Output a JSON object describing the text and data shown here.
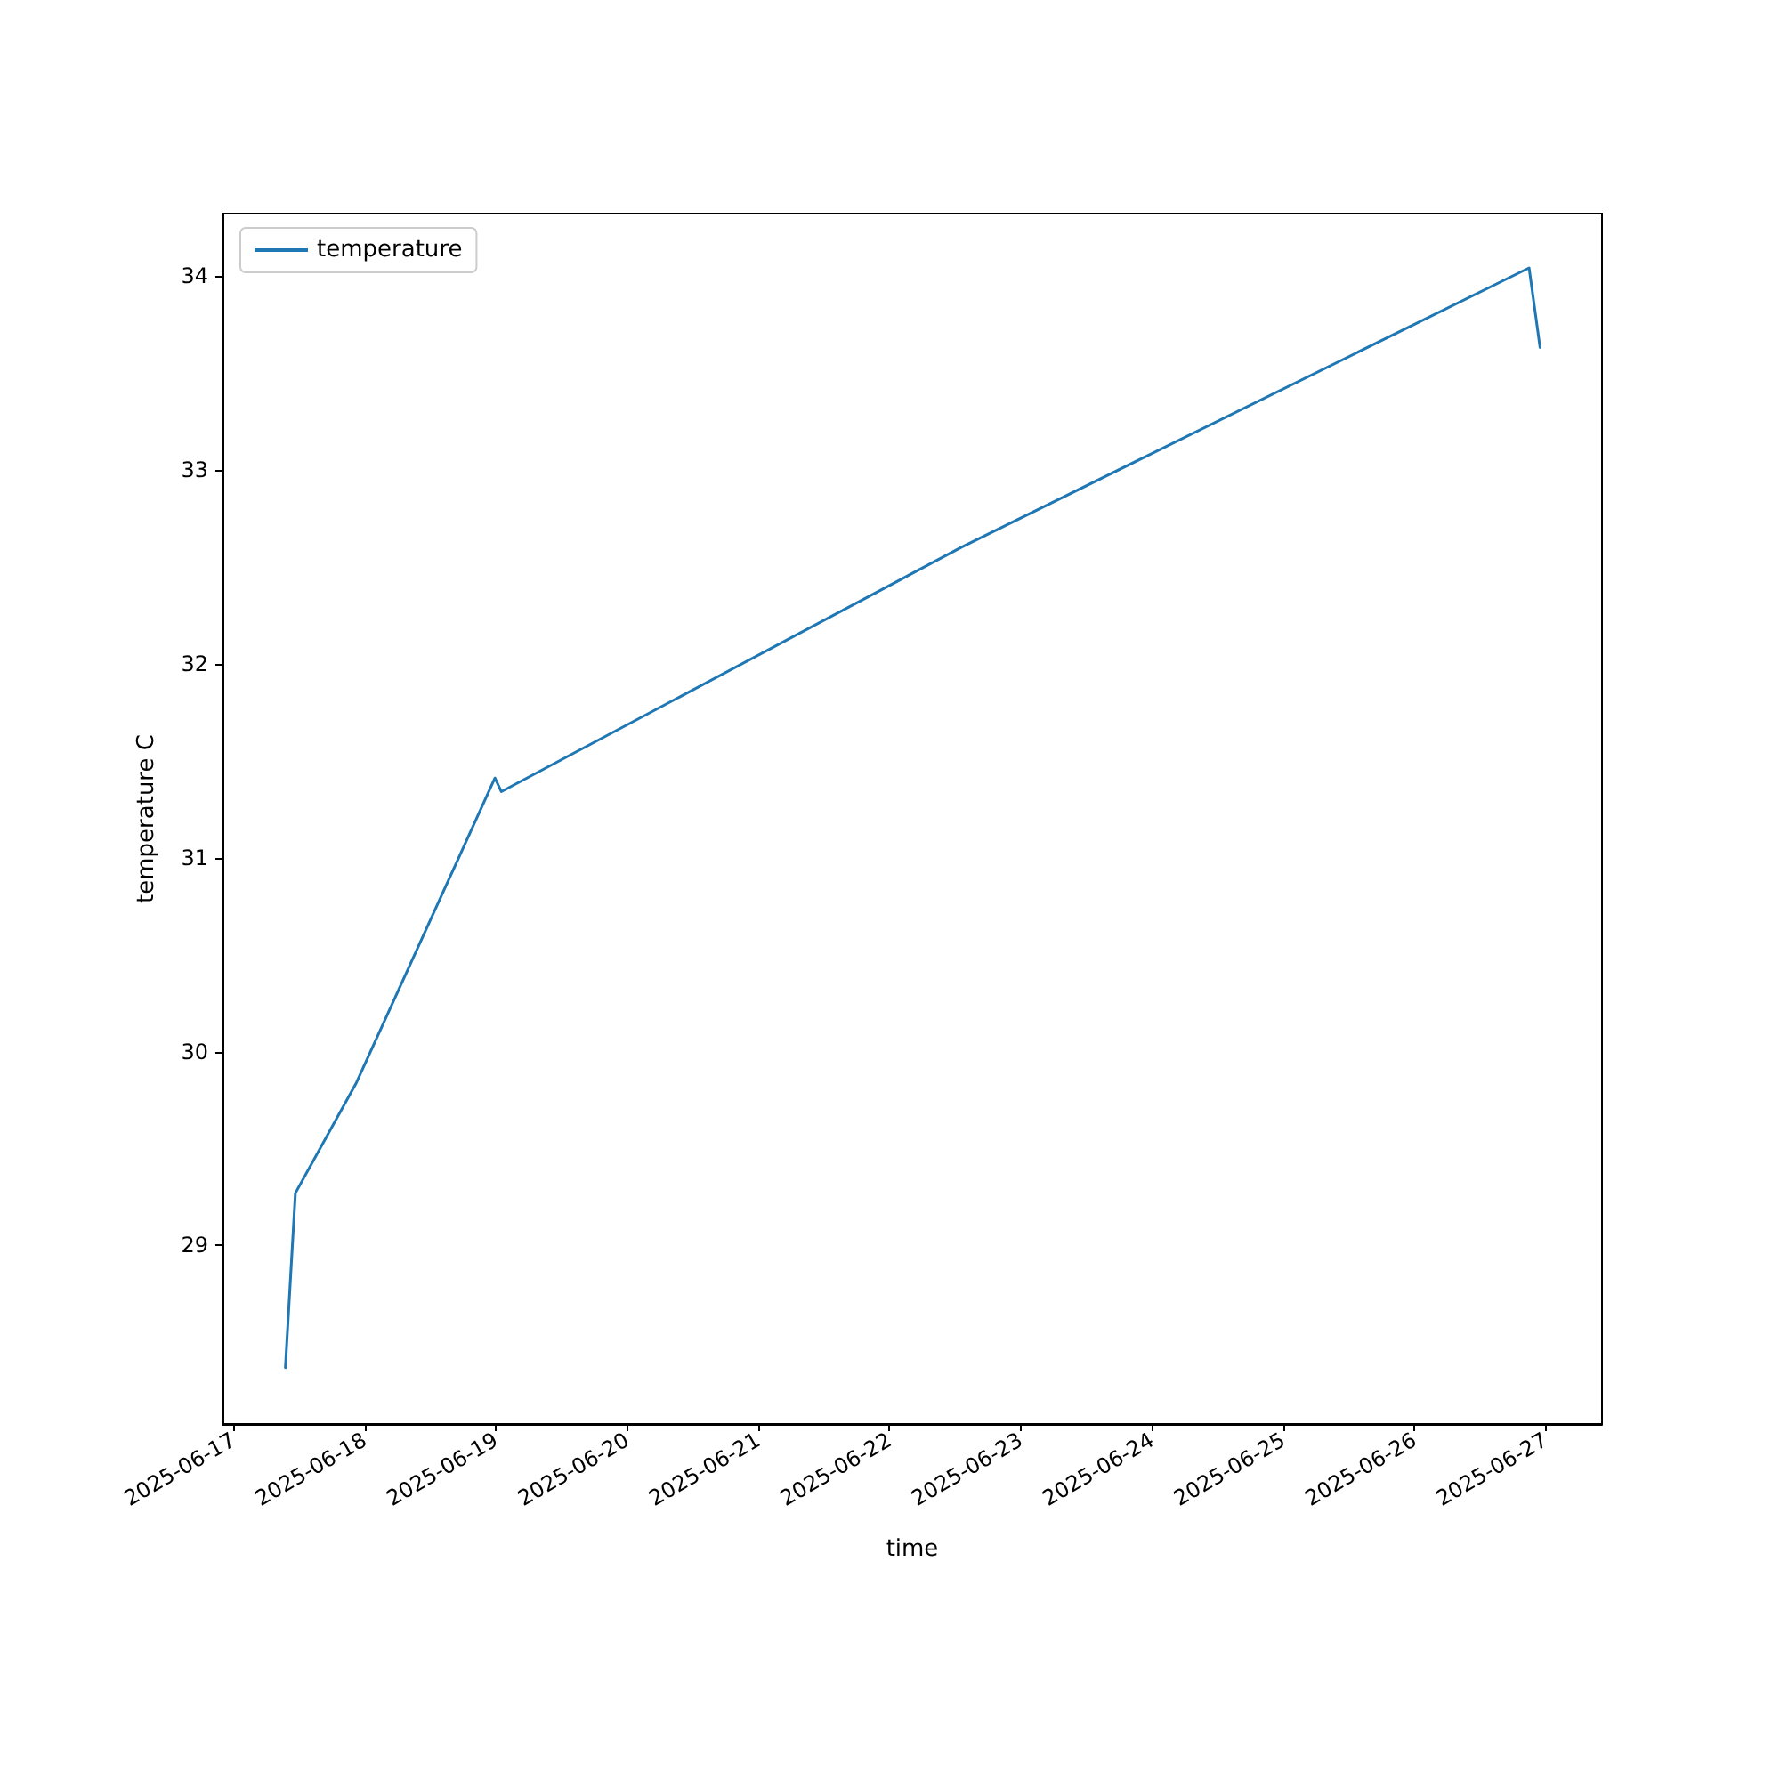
{
  "chart_data": {
    "type": "line",
    "xlabel": "time",
    "ylabel": "temperature C",
    "x": [
      "2025-06-17T09:30",
      "2025-06-17T11:20",
      "2025-06-17T22:30",
      "2025-06-18T23:50",
      "2025-06-19T01:00",
      "2025-06-22T13:10",
      "2025-06-26T21:00",
      "2025-06-26T23:00"
    ],
    "series": [
      {
        "name": "temperature",
        "color": "#1f77b4",
        "values": [
          28.37,
          29.27,
          29.84,
          31.41,
          31.34,
          32.6,
          34.04,
          33.63
        ]
      }
    ],
    "xlim": [
      "2025-06-16T22:00",
      "2025-06-27T10:20"
    ],
    "xticks": [
      "2025-06-17",
      "2025-06-18",
      "2025-06-19",
      "2025-06-20",
      "2025-06-21",
      "2025-06-22",
      "2025-06-23",
      "2025-06-24",
      "2025-06-25",
      "2025-06-26",
      "2025-06-27"
    ],
    "ylim": [
      28.08,
      34.32
    ],
    "yticks": [
      29,
      30,
      31,
      32,
      33,
      34
    ],
    "legend": "top left",
    "grid": false,
    "marker": "none",
    "line_style": "solid"
  }
}
